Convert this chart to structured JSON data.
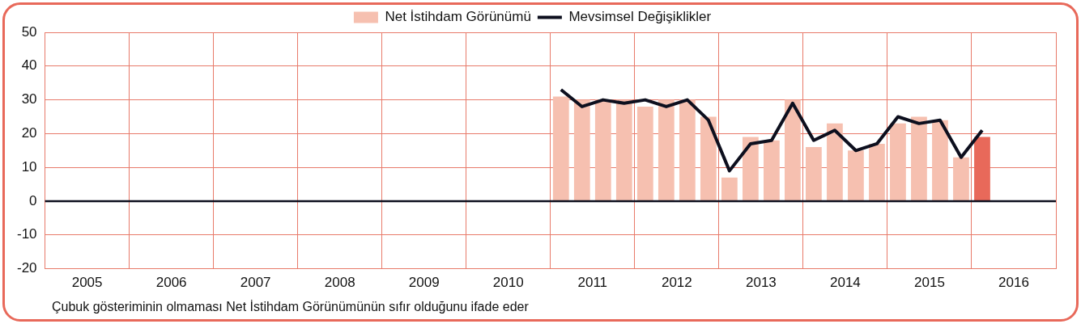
{
  "chart_data": {
    "type": "bar",
    "x": [
      2011.125,
      2011.375,
      2011.625,
      2011.875,
      2012.125,
      2012.375,
      2012.625,
      2012.875,
      2013.125,
      2013.375,
      2013.625,
      2013.875,
      2014.125,
      2014.375,
      2014.625,
      2014.875,
      2015.125,
      2015.375,
      2015.625,
      2015.875,
      2016.125
    ],
    "series": [
      {
        "name": "Net İstihdam Görünümü",
        "color": "#f6c0b0",
        "colors": [
          "#f6c0b0",
          "#f6c0b0",
          "#f6c0b0",
          "#f6c0b0",
          "#f6c0b0",
          "#f6c0b0",
          "#f6c0b0",
          "#f6c0b0",
          "#f6c0b0",
          "#f6c0b0",
          "#f6c0b0",
          "#f6c0b0",
          "#f6c0b0",
          "#f6c0b0",
          "#f6c0b0",
          "#f6c0b0",
          "#f6c0b0",
          "#f6c0b0",
          "#f6c0b0",
          "#f6c0b0",
          "#e8695a"
        ],
        "values": [
          31,
          30,
          30,
          30,
          28,
          30,
          30,
          25,
          7,
          19,
          18,
          30,
          16,
          23,
          15,
          17,
          23,
          25,
          24,
          13,
          19
        ]
      },
      {
        "name": "Mevsimsel Değişiklikler",
        "type": "line",
        "color": "#0d0f1e",
        "values": [
          33,
          28,
          30,
          29,
          30,
          28,
          30,
          24,
          9,
          17,
          18,
          29,
          18,
          21,
          15,
          17,
          25,
          23,
          24,
          13,
          21
        ]
      }
    ],
    "xlim": [
      2005,
      2017
    ],
    "xticks": [
      {
        "value": 2005.5,
        "label": "2005"
      },
      {
        "value": 2006,
        "label": null
      },
      {
        "value": 2006.5,
        "label": "2006"
      },
      {
        "value": 2007,
        "label": null
      },
      {
        "value": 2007.5,
        "label": "2007"
      },
      {
        "value": 2008,
        "label": null
      },
      {
        "value": 2008.5,
        "label": "2008"
      },
      {
        "value": 2009,
        "label": null
      },
      {
        "value": 2009.5,
        "label": "2009"
      },
      {
        "value": 2010,
        "label": null
      },
      {
        "value": 2010.5,
        "label": "2010"
      },
      {
        "value": 2011,
        "label": null
      },
      {
        "value": 2011.5,
        "label": "2011"
      },
      {
        "value": 2012,
        "label": null
      },
      {
        "value": 2012.5,
        "label": "2012"
      },
      {
        "value": 2013,
        "label": null
      },
      {
        "value": 2013.5,
        "label": "2013"
      },
      {
        "value": 2014,
        "label": null
      },
      {
        "value": 2014.5,
        "label": "2014"
      },
      {
        "value": 2015,
        "label": null
      },
      {
        "value": 2015.5,
        "label": "2015"
      },
      {
        "value": 2016,
        "label": null
      },
      {
        "value": 2016.5,
        "label": "2016"
      },
      {
        "value": 2017,
        "label": null
      }
    ],
    "ylim": [
      -20,
      50
    ],
    "yticks": [
      -20,
      -10,
      0,
      10,
      20,
      30,
      40,
      50
    ],
    "grid": true,
    "legend": "top",
    "marker": "none",
    "line_style": "solid",
    "ref_lines": [
      {
        "axis": "y",
        "value": 0,
        "color": "#0d0f1e"
      }
    ],
    "annotations": [
      "Çubuk gösteriminin olmaması Net İstihdam Görünümünün sıfır olduğunu ifade eder"
    ]
  }
}
